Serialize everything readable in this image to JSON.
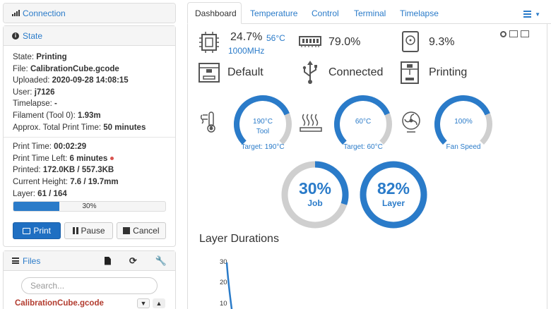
{
  "connection": {
    "title": "Connection",
    "icon": "signal-icon"
  },
  "state": {
    "title": "State",
    "lines": [
      {
        "label": "State:",
        "value": "Printing"
      },
      {
        "label": "File:",
        "value": "CalibrationCube.gcode"
      },
      {
        "label": "Uploaded:",
        "value": "2020-09-28 14:08:15"
      },
      {
        "label": "User:",
        "value": "j7126"
      },
      {
        "label": "Timelapse:",
        "value": "-"
      },
      {
        "label": "Filament (Tool 0):",
        "value": "1.93m"
      },
      {
        "label": "Approx. Total Print Time:",
        "value": "50 minutes"
      }
    ],
    "print_lines": [
      {
        "label": "Print Time:",
        "value": "00:02:29"
      },
      {
        "label": "Print Time Left:",
        "value": "6 minutes"
      },
      {
        "label": "Printed:",
        "value": "172.0KB / 557.3KB"
      },
      {
        "label": "Current Height:",
        "value": "7.6 / 19.7mm"
      },
      {
        "label": "Layer:",
        "value": "61 / 164"
      }
    ],
    "progress_label": "30%",
    "progress_fraction": 0.3,
    "buttons": {
      "print": "Print",
      "pause": "Pause",
      "cancel": "Cancel"
    }
  },
  "files": {
    "title": "Files",
    "search_placeholder": "Search...",
    "first_file": "CalibrationCube.gcode"
  },
  "tabs": [
    "Dashboard",
    "Temperature",
    "Control",
    "Terminal",
    "Timelapse"
  ],
  "dashboard": {
    "cpu_percent": "24.7%",
    "cpu_temp": "56°C",
    "cpu_freq": "1000MHz",
    "memory_percent": "79.0%",
    "disk_percent": "9.3%",
    "profile": "Default",
    "connection_status": "Connected",
    "print_status": "Printing",
    "gauges": {
      "tool": {
        "value": "190°C",
        "name": "Tool",
        "target": "Target: 190°C",
        "fraction": 0.75
      },
      "bed": {
        "value": "60°C",
        "name": "",
        "target": "Target: 60°C",
        "fraction": 0.75
      },
      "fan": {
        "value": "100%",
        "name": "",
        "target": "Fan Speed",
        "fraction": 0.75
      },
      "job": {
        "value": "30%",
        "name": "Job",
        "fraction": 0.3
      },
      "layer": {
        "value": "82%",
        "name": "Layer",
        "fraction": 1.0
      }
    },
    "layer_durations_title": "Layer Durations",
    "y_ticks": [
      "30",
      "20",
      "10"
    ]
  },
  "colors": {
    "accent": "#2a7bc9",
    "gauge_track": "#cfcfcf",
    "primary_button": "#1f6fc2",
    "file_red": "#b23b2e"
  }
}
